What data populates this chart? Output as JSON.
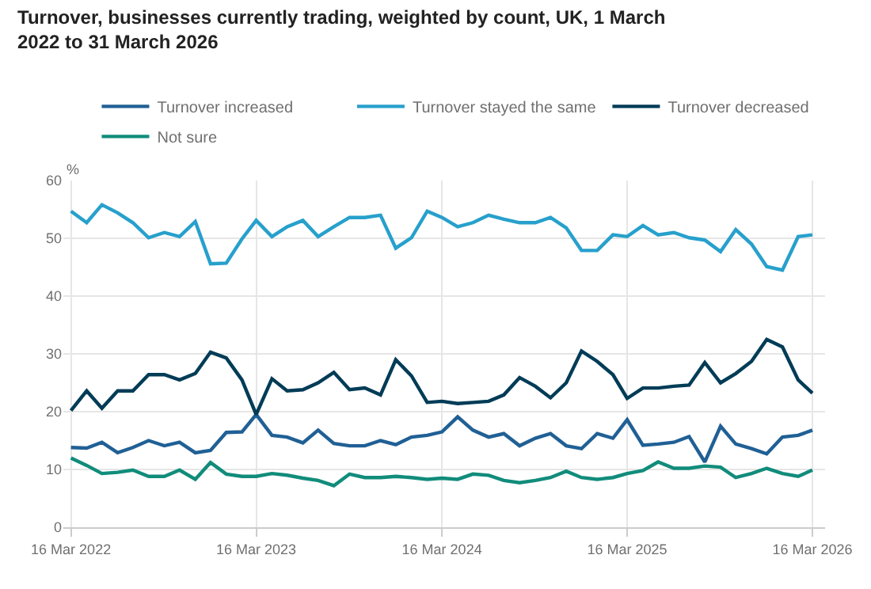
{
  "chart_data": {
    "type": "line",
    "title": "Turnover, businesses currently trading, weighted by count, UK, 1 March 2022 to 31 March 2026",
    "ylabel": "%",
    "x": [
      "2022-03-16",
      "2022-04-16",
      "2022-05-16",
      "2022-06-16",
      "2022-07-16",
      "2022-08-16",
      "2022-09-16",
      "2022-10-16",
      "2022-11-16",
      "2022-12-16",
      "2023-01-16",
      "2023-02-16",
      "2023-03-16",
      "2023-04-16",
      "2023-05-16",
      "2023-06-16",
      "2023-07-16",
      "2023-08-16",
      "2023-09-16",
      "2023-10-16",
      "2023-11-16",
      "2023-12-16",
      "2024-01-16",
      "2024-02-16",
      "2024-03-16",
      "2024-04-16",
      "2024-05-16",
      "2024-06-16",
      "2024-07-16",
      "2024-08-16",
      "2024-09-16",
      "2024-10-16",
      "2024-11-16",
      "2024-12-16",
      "2025-01-16",
      "2025-02-16",
      "2025-03-16",
      "2025-04-16",
      "2025-05-16",
      "2025-06-16",
      "2025-07-16",
      "2025-08-16",
      "2025-09-16",
      "2025-10-16",
      "2025-11-16",
      "2025-12-16",
      "2026-01-16",
      "2026-02-16",
      "2026-03-16"
    ],
    "series": [
      {
        "name": "Turnover increased",
        "color": "#206095",
        "values": [
          13.8,
          13.7,
          14.7,
          12.9,
          13.8,
          15.0,
          14.1,
          14.7,
          12.9,
          13.3,
          16.4,
          16.5,
          19.5,
          15.9,
          15.6,
          14.6,
          16.8,
          14.5,
          14.1,
          14.1,
          15.0,
          14.3,
          15.6,
          15.9,
          16.5,
          19.1,
          16.8,
          15.6,
          16.2,
          14.1,
          15.4,
          16.2,
          14.1,
          13.6,
          16.2,
          15.4,
          18.6,
          14.2,
          14.4,
          14.7,
          15.7,
          11.3,
          17.5,
          14.4,
          13.6,
          12.7,
          15.6,
          15.9,
          16.8
        ]
      },
      {
        "name": "Turnover stayed the same",
        "color": "#27a0cc",
        "values": [
          54.7,
          52.7,
          55.8,
          54.4,
          52.7,
          50.1,
          51.0,
          50.3,
          52.9,
          45.6,
          45.7,
          49.9,
          53.1,
          50.3,
          52.0,
          53.1,
          50.3,
          52.0,
          53.6,
          53.6,
          54.0,
          48.3,
          50.1,
          54.7,
          53.6,
          52.0,
          52.7,
          54.0,
          53.3,
          52.7,
          52.7,
          53.6,
          51.8,
          47.9,
          47.9,
          50.6,
          50.3,
          52.2,
          50.6,
          51.0,
          50.1,
          49.7,
          47.7,
          51.5,
          49.0,
          45.1,
          44.5,
          50.3,
          50.6
        ]
      },
      {
        "name": "Turnover decreased",
        "color": "#003c57",
        "values": [
          20.2,
          23.6,
          20.6,
          23.6,
          23.6,
          26.4,
          26.4,
          25.5,
          26.6,
          30.3,
          29.3,
          25.5,
          19.5,
          25.7,
          23.6,
          23.8,
          25.0,
          26.8,
          23.8,
          24.1,
          22.9,
          29.0,
          26.2,
          21.6,
          21.8,
          21.4,
          21.6,
          21.8,
          22.9,
          25.9,
          24.4,
          22.4,
          25.0,
          30.5,
          28.7,
          26.4,
          22.3,
          24.1,
          24.1,
          24.4,
          24.6,
          28.5,
          25.0,
          26.6,
          28.7,
          32.5,
          31.2,
          25.5,
          23.2
        ]
      },
      {
        "name": "Not sure",
        "color": "#118c7b",
        "values": [
          12.0,
          10.7,
          9.3,
          9.5,
          9.9,
          8.8,
          8.8,
          9.9,
          8.3,
          11.2,
          9.2,
          8.8,
          8.8,
          9.3,
          9.0,
          8.5,
          8.1,
          7.2,
          9.2,
          8.6,
          8.6,
          8.8,
          8.6,
          8.3,
          8.5,
          8.3,
          9.2,
          9.0,
          8.1,
          7.7,
          8.1,
          8.6,
          9.7,
          8.6,
          8.3,
          8.6,
          9.3,
          9.8,
          11.3,
          10.2,
          10.2,
          10.6,
          10.4,
          8.6,
          9.3,
          10.2,
          9.3,
          8.8,
          9.9
        ]
      }
    ],
    "xlim": [
      "2022-03-01",
      "2026-04-10"
    ],
    "xticks": [
      {
        "value": "2022-03-16",
        "label": "16 Mar 2022"
      },
      {
        "value": "2023-03-16",
        "label": "16 Mar 2023"
      },
      {
        "value": "2024-03-16",
        "label": "16 Mar 2024"
      },
      {
        "value": "2025-03-16",
        "label": "16 Mar 2025"
      },
      {
        "value": "2026-03-16",
        "label": "16 Mar 2026"
      }
    ],
    "ylim": [
      0,
      60
    ],
    "yticks": [
      0,
      10,
      20,
      30,
      40,
      50,
      60
    ],
    "grid": true,
    "legend": "top",
    "marker": "none",
    "line_style": "solid"
  }
}
